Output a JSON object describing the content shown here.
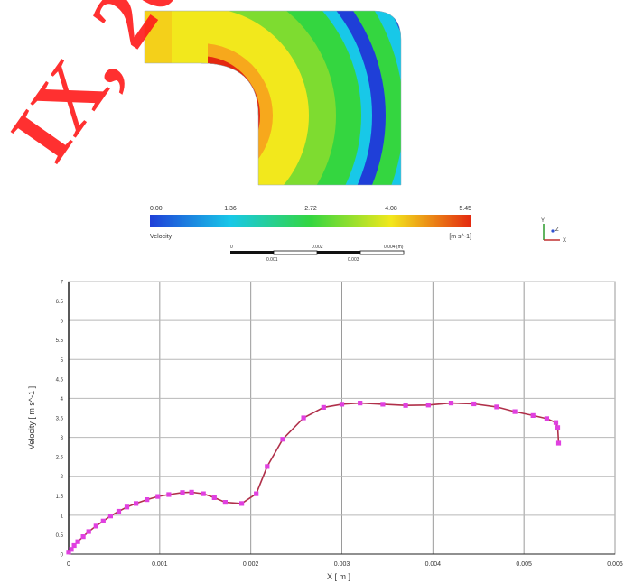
{
  "watermark": {
    "text": "IX, 20",
    "color": "#ff1a1a"
  },
  "contour": {
    "colors": {
      "low": "#1f3fd8",
      "cyan": "#18c8e8",
      "green": "#34d640",
      "yellow": "#f2e81c",
      "red": "#e42810",
      "background": "#ffffff"
    }
  },
  "colorbar": {
    "ticks": [
      "0.00",
      "1.36",
      "2.72",
      "4.08",
      "5.45"
    ],
    "title": "Velocity",
    "unit": "[m s^-1]"
  },
  "scalebar": {
    "labels": [
      "0",
      "0.002",
      "0.004 (m)"
    ],
    "sublabels": [
      "0.001",
      "0.003"
    ]
  },
  "axis_triad": {
    "y": "Y",
    "z": "Z",
    "x": "X"
  },
  "chart_data": {
    "type": "line",
    "title": "",
    "xlabel": "X [ m ]",
    "ylabel": "Velocity [ m s^-1 ]",
    "xlim": [
      0,
      0.006
    ],
    "ylim": [
      0,
      7
    ],
    "x_tick_labels": [
      "0",
      "0.001",
      "0.002",
      "0.003",
      "0.004",
      "0.005",
      "0.006"
    ],
    "y_tick_labels": [
      "0",
      "0.5",
      "1",
      "1.5",
      "2",
      "2.5",
      "3",
      "3.5",
      "4",
      "4.5",
      "5",
      "5.5",
      "6",
      "6.5",
      "7"
    ],
    "grid": true,
    "line_color": "#b0304a",
    "marker_color": "#e040e0",
    "series": [
      {
        "points": [
          [
            0.0,
            0.05
          ],
          [
            3e-05,
            0.12
          ],
          [
            6e-05,
            0.22
          ],
          [
            0.0001,
            0.32
          ],
          [
            0.00016,
            0.45
          ],
          [
            0.00022,
            0.58
          ],
          [
            0.0003,
            0.72
          ],
          [
            0.00038,
            0.85
          ],
          [
            0.00046,
            0.98
          ],
          [
            0.00055,
            1.1
          ],
          [
            0.00064,
            1.21
          ],
          [
            0.00074,
            1.3
          ],
          [
            0.00086,
            1.4
          ],
          [
            0.00098,
            1.48
          ],
          [
            0.0011,
            1.53
          ],
          [
            0.00125,
            1.58
          ],
          [
            0.00135,
            1.59
          ],
          [
            0.00148,
            1.55
          ],
          [
            0.0016,
            1.45
          ],
          [
            0.00172,
            1.33
          ],
          [
            0.0019,
            1.3
          ],
          [
            0.00206,
            1.55
          ],
          [
            0.00218,
            2.25
          ],
          [
            0.00235,
            2.95
          ],
          [
            0.00258,
            3.5
          ],
          [
            0.0028,
            3.77
          ],
          [
            0.003,
            3.85
          ],
          [
            0.0032,
            3.88
          ],
          [
            0.00345,
            3.85
          ],
          [
            0.0037,
            3.82
          ],
          [
            0.00395,
            3.83
          ],
          [
            0.0042,
            3.88
          ],
          [
            0.00445,
            3.86
          ],
          [
            0.0047,
            3.78
          ],
          [
            0.0049,
            3.66
          ],
          [
            0.0051,
            3.56
          ],
          [
            0.00525,
            3.48
          ],
          [
            0.00535,
            3.38
          ],
          [
            0.00537,
            3.25
          ],
          [
            0.00538,
            2.85
          ]
        ]
      }
    ]
  }
}
